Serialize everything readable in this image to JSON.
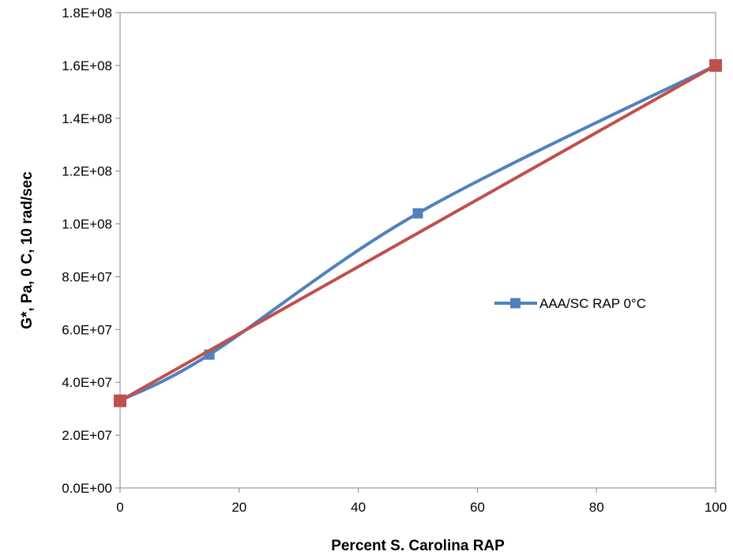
{
  "chart_data": {
    "type": "line",
    "title": "",
    "xlabel": "Percent S. Carolina RAP",
    "ylabel": "G*, Pa, 0 C, 10 rad/sec",
    "xlim": [
      0,
      100
    ],
    "ylim": [
      0,
      180000000
    ],
    "x_ticks": [
      0,
      20,
      40,
      60,
      80,
      100
    ],
    "x_tick_labels": [
      "0",
      "20",
      "40",
      "60",
      "80",
      "100"
    ],
    "y_ticks": [
      0,
      20000000,
      40000000,
      60000000,
      80000000,
      100000000,
      120000000,
      140000000,
      160000000,
      180000000
    ],
    "y_tick_labels": [
      "0.0E+00",
      "2.0E+07",
      "4.0E+07",
      "6.0E+07",
      "8.0E+07",
      "1.0E+08",
      "1.2E+08",
      "1.4E+08",
      "1.6E+08",
      "1.8E+08"
    ],
    "grid": false,
    "legend_position": "right-middle",
    "series": [
      {
        "name": "AAA/SC RAP 0°C",
        "color": "#4F81BD",
        "marker": "square",
        "smooth": true,
        "x": [
          0,
          15,
          50,
          100
        ],
        "y": [
          33000000,
          50500000,
          104000000,
          160000000
        ]
      },
      {
        "color": "#C0504D",
        "marker": "square",
        "marker_on_ends_only": true,
        "smooth": false,
        "x": [
          0,
          100
        ],
        "y": [
          33000000,
          160000000
        ]
      }
    ]
  }
}
